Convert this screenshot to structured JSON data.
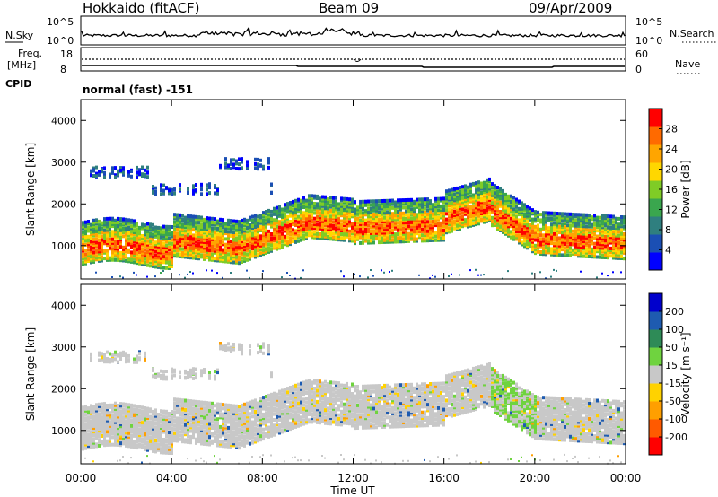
{
  "header": {
    "station": "Hokkaido (fitACF)",
    "beam": "Beam 09",
    "date": "09/Apr/2009"
  },
  "noise_panel": {
    "left_label": "N.Sky",
    "left_ticks": [
      "10^5",
      "10^0"
    ],
    "right_ticks": [
      "10^5",
      "10^0"
    ],
    "right_label": "N.Search"
  },
  "freq_panel": {
    "left_label_line1": "Freq.",
    "left_label_line2": "[MHz]",
    "left_ticks": [
      "18",
      "8"
    ],
    "right_ticks": [
      "60",
      "0"
    ],
    "right_label": "Nave"
  },
  "cpid_panel": {
    "label": "CPID",
    "text": "normal (fast) -151"
  },
  "chart_data": [
    {
      "type": "heatmap",
      "title": "",
      "xlabel": "",
      "ylabel": "Slant Range [km]",
      "ylim": [
        200,
        4500
      ],
      "yticks": [
        "1000",
        "2000",
        "3000",
        "4000"
      ],
      "colorbar": {
        "label": "Power [dB]",
        "ticks": [
          "4",
          "8",
          "12",
          "16",
          "20",
          "24",
          "28"
        ],
        "colors": [
          "#0000ff",
          "#1b4fb4",
          "#2f7f7f",
          "#3aa64e",
          "#7fcc26",
          "#ffd700",
          "#ffa500",
          "#ff6a00",
          "#ff0000"
        ]
      }
    },
    {
      "type": "heatmap",
      "title": "",
      "xlabel": "Time UT",
      "ylabel": "Slant Range [km]",
      "ylim": [
        200,
        4500
      ],
      "xticks": [
        "00:00",
        "04:00",
        "08:00",
        "12:00",
        "16:00",
        "20:00",
        "00:00"
      ],
      "yticks": [
        "1000",
        "2000",
        "3000",
        "4000"
      ],
      "colorbar": {
        "label": "Velocity [m s⁻¹]",
        "ticks": [
          "200",
          "100",
          "50",
          "15",
          "-15",
          "-50",
          "-100",
          "-200"
        ],
        "colors": [
          "#0000cc",
          "#1e5bb0",
          "#2e8b57",
          "#6fd33f",
          "#c8c8c8",
          "#ffd200",
          "#ff9f00",
          "#ff5a00",
          "#ff0000"
        ]
      }
    }
  ]
}
